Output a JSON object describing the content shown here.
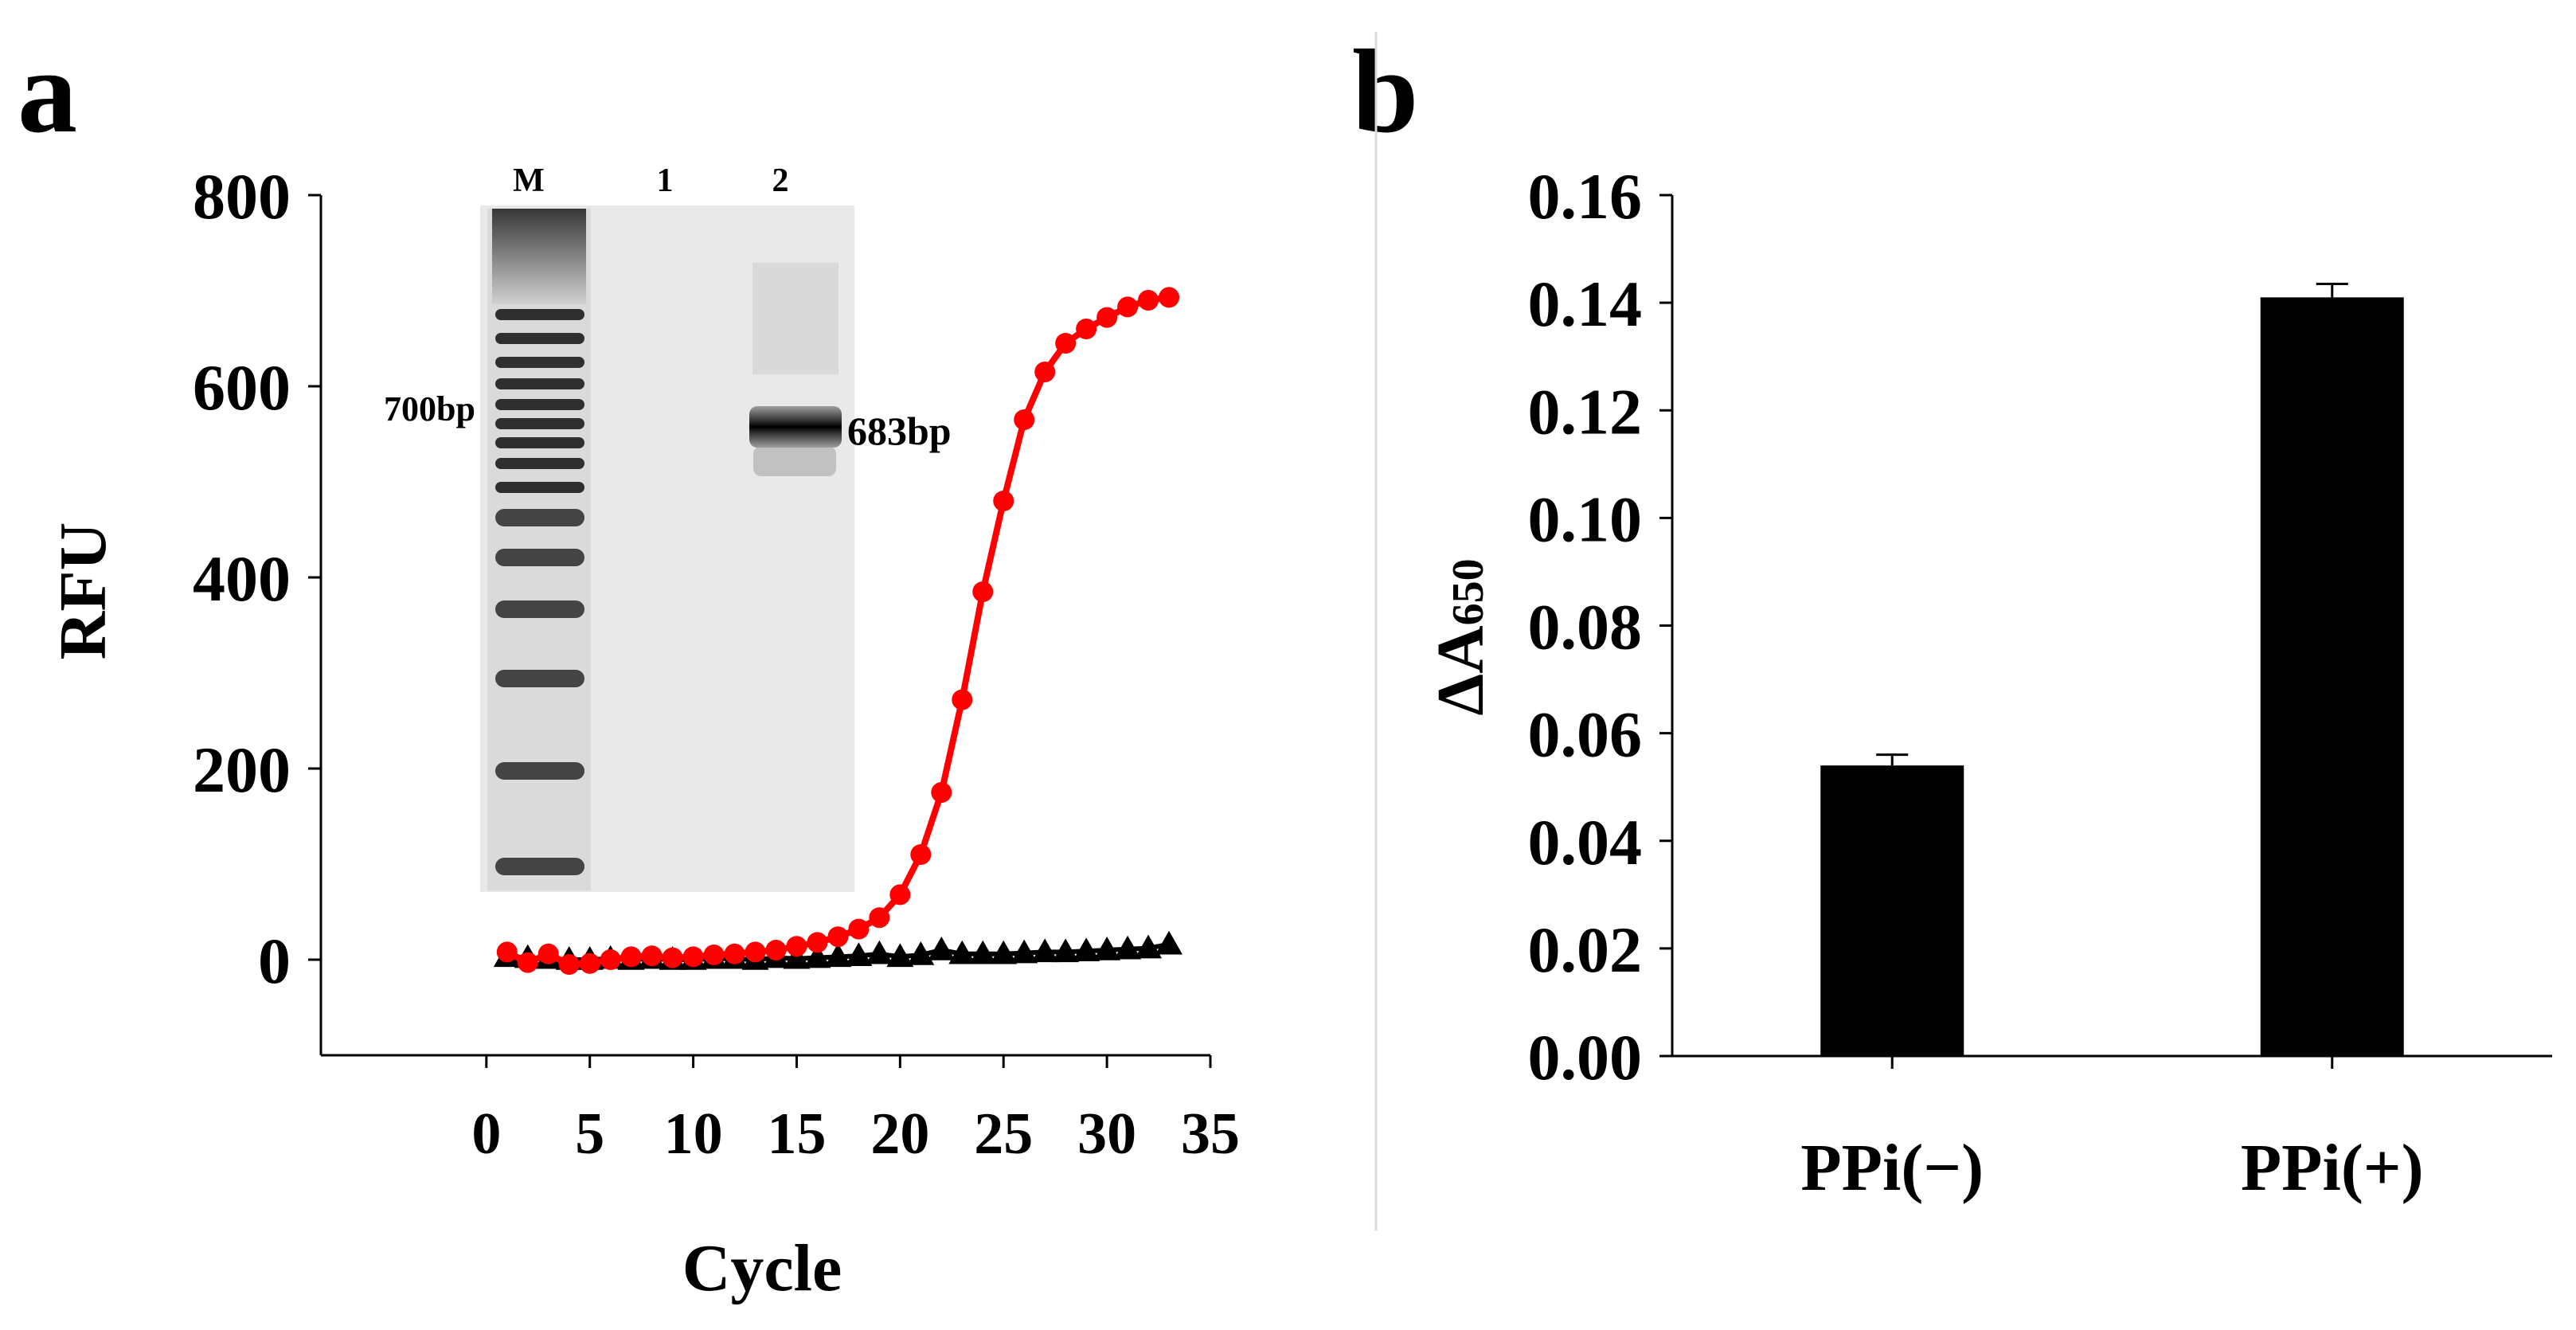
{
  "panels": {
    "a_label": "a",
    "b_label": "b"
  },
  "colors": {
    "red_series": "#ff0000",
    "black_series": "#000000",
    "bar_fill": "#000000"
  },
  "chart_data": [
    {
      "id": "a",
      "type": "line",
      "xlabel": "Cycle",
      "ylabel": "RFU",
      "xlim": [
        -8,
        35
      ],
      "ylim": [
        -100,
        800
      ],
      "xticks": [
        0,
        5,
        10,
        15,
        20,
        25,
        30,
        35
      ],
      "yticks": [
        0,
        200,
        400,
        600,
        800
      ],
      "x": [
        1,
        2,
        3,
        4,
        5,
        6,
        7,
        8,
        9,
        10,
        11,
        12,
        13,
        14,
        15,
        16,
        17,
        18,
        19,
        20,
        21,
        22,
        23,
        24,
        25,
        26,
        27,
        28,
        29,
        30,
        31,
        32,
        33
      ],
      "series": [
        {
          "name": "red",
          "marker": "circle",
          "values": [
            8,
            -3,
            6,
            -5,
            -4,
            0,
            3,
            4,
            2,
            3,
            5,
            6,
            8,
            10,
            14,
            18,
            24,
            32,
            44,
            68,
            110,
            175,
            272,
            385,
            480,
            565,
            615,
            645,
            660,
            672,
            683,
            690,
            693
          ]
        },
        {
          "name": "black",
          "marker": "triangle",
          "values": [
            3,
            2,
            1,
            0,
            0,
            1,
            0,
            1,
            0,
            0,
            1,
            1,
            0,
            2,
            1,
            2,
            3,
            4,
            6,
            3,
            5,
            10,
            6,
            6,
            6,
            7,
            8,
            8,
            9,
            10,
            11,
            12,
            16
          ]
        }
      ],
      "inset": {
        "type": "gel",
        "lane_labels": [
          "M",
          "1",
          "2"
        ],
        "marker_label": "700bp",
        "band_label": "683bp"
      }
    },
    {
      "id": "b",
      "type": "bar",
      "ylabel": "ΔA",
      "ylabel_sub": "650",
      "categories": [
        "PPi(−)",
        "PPi(+)"
      ],
      "values": [
        0.054,
        0.141
      ],
      "errors": [
        0.002,
        0.0025
      ],
      "ylim": [
        0,
        0.16
      ],
      "yticks": [
        "0.00",
        "0.02",
        "0.04",
        "0.06",
        "0.08",
        "0.10",
        "0.12",
        "0.14",
        "0.16"
      ]
    }
  ]
}
